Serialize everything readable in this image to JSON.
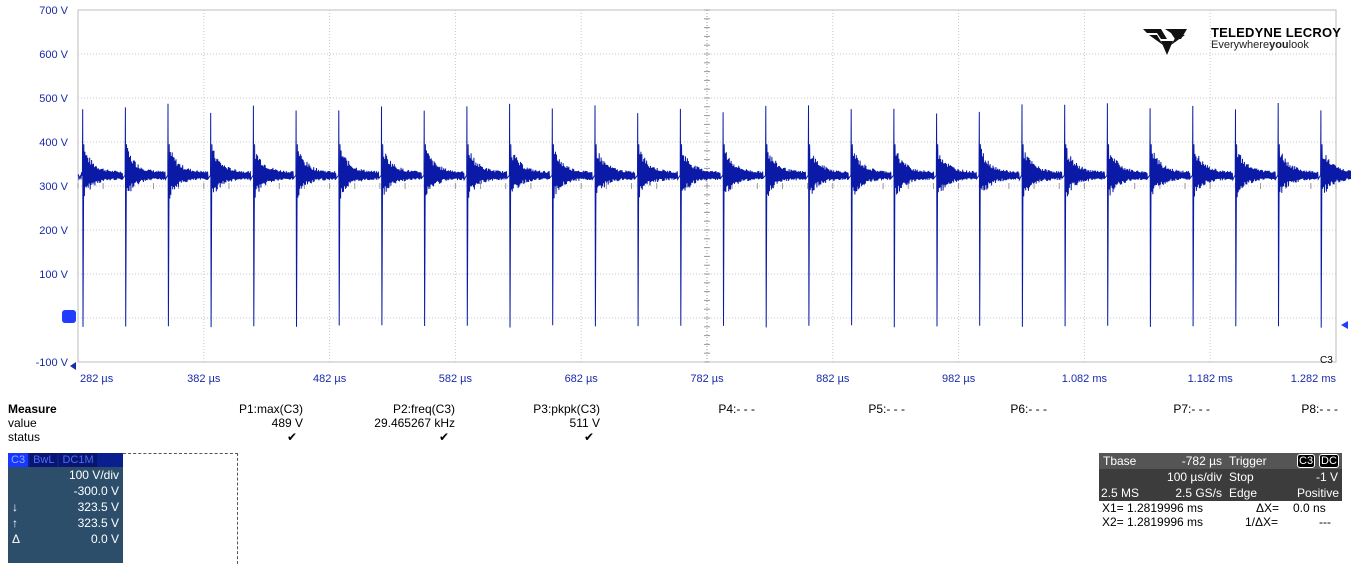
{
  "chart_data": {
    "type": "line",
    "title": "",
    "y_tick_labels": [
      "700 V",
      "600 V",
      "500 V",
      "400 V",
      "300 V",
      "200 V",
      "100 V",
      "0",
      "-100 V"
    ],
    "y_ticks": [
      700,
      600,
      500,
      400,
      300,
      200,
      100,
      0,
      -100
    ],
    "ylim": [
      -100,
      700
    ],
    "x_tick_labels": [
      "282 µs",
      "382 µs",
      "482 µs",
      "582 µs",
      "682 µs",
      "782 µs",
      "882 µs",
      "982 µs",
      "1.082 ms",
      "1.182 ms",
      "1.282 ms"
    ],
    "xlim_us": [
      282,
      1282
    ],
    "grid": true,
    "trace_label": "C3",
    "series": [
      {
        "name": "C3",
        "baseline_v": 323.5,
        "peak_max_v": 489,
        "peak_min_v": -22,
        "frequency_khz": 29.465267,
        "period_us": 33.94
      }
    ]
  },
  "brand": {
    "name": "TELEDYNE LECROY",
    "tagline_pre": "Everywhere",
    "tagline_bold": "you",
    "tagline_post": "look"
  },
  "measure": {
    "title": "Measure",
    "rows": [
      "value",
      "status"
    ],
    "params": [
      {
        "label": "P1:max(C3)",
        "value": "489 V",
        "status": "✔"
      },
      {
        "label": "P2:freq(C3)",
        "value": "29.465267 kHz",
        "status": "✔"
      },
      {
        "label": "P3:pkpk(C3)",
        "value": "511 V",
        "status": "✔"
      },
      {
        "label": "P4:- - -",
        "value": "",
        "status": ""
      },
      {
        "label": "P5:- - -",
        "value": "",
        "status": ""
      },
      {
        "label": "P6:- - -",
        "value": "",
        "status": ""
      },
      {
        "label": "P7:- - -",
        "value": "",
        "status": ""
      },
      {
        "label": "P8:- - -",
        "value": "",
        "status": ""
      }
    ]
  },
  "channel": {
    "tabs": [
      "C3",
      "BwL",
      "DC1M"
    ],
    "vdiv": "100 V/div",
    "offset": "-300.0 V",
    "down_glyph": "↓",
    "down_value": "323.5 V",
    "up_glyph": "↑",
    "up_value": "323.5 V",
    "delta_glyph": "Δ",
    "delta_value": "0.0 V"
  },
  "timebase": {
    "tbase_label": "Tbase",
    "tbase_value": "-782 µs",
    "tdiv": "100 µs/div",
    "samples": "2.5 MS",
    "rate": "2.5 GS/s",
    "trigger_label": "Trigger",
    "trigger_ch": "C3",
    "trigger_coupling": "DC",
    "trigger_mode": "Stop",
    "trigger_level": "-1 V",
    "trigger_type": "Edge",
    "trigger_slope": "Positive",
    "x1_label": "X1=",
    "x1_value": "1.2819996 ms",
    "x2_label": "X2=",
    "x2_value": "1.2819996 ms",
    "dx_label": "ΔX=",
    "dx_value": "0.0 ns",
    "inv_dx_label": "1/ΔX=",
    "inv_dx_value": "---"
  }
}
